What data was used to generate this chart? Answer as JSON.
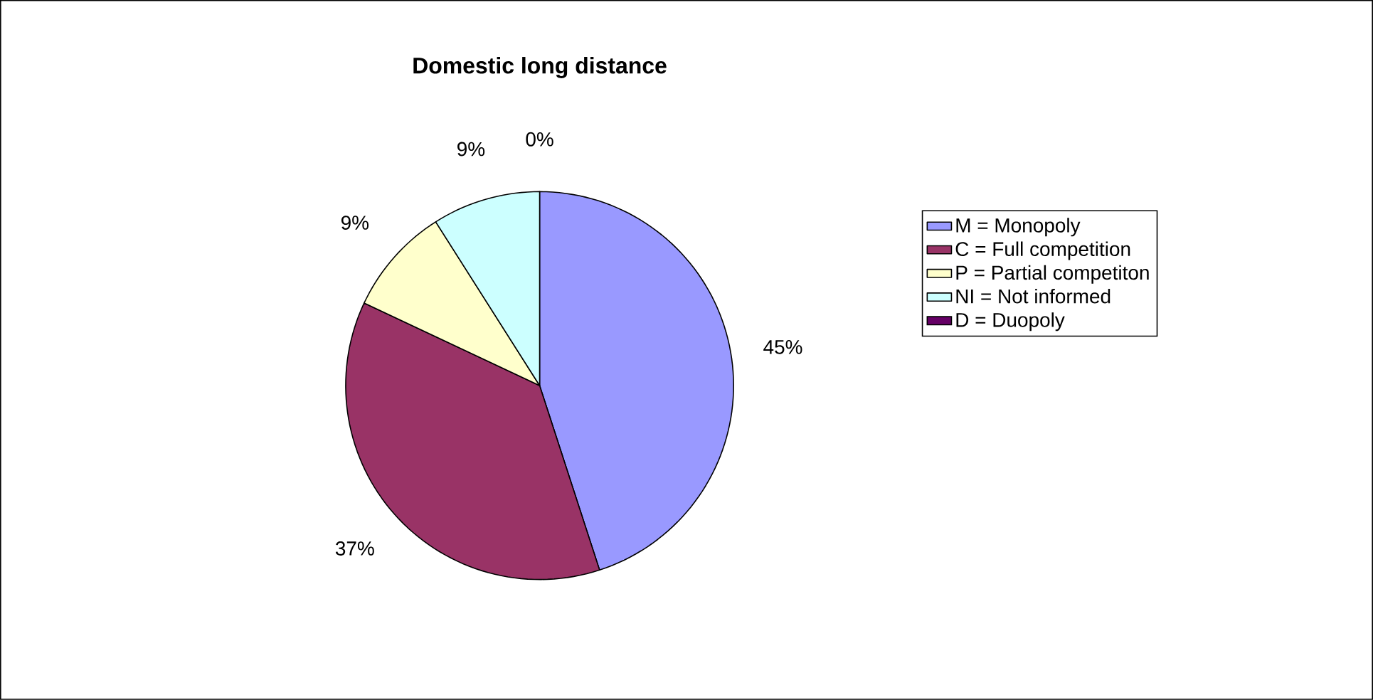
{
  "chart_data": {
    "type": "pie",
    "title": "Domestic long distance",
    "categories": [
      "M = Monopoly",
      "C = Full competition",
      "P = Partial competiton",
      "NI = Not informed",
      "D = Duopoly"
    ],
    "values": [
      45,
      37,
      9,
      9,
      0
    ],
    "colors": [
      "#9999ff",
      "#993366",
      "#ffffcc",
      "#ccffff",
      "#660066"
    ],
    "value_labels": [
      "45%",
      "37%",
      "9%",
      "9%",
      "0%"
    ],
    "legend": "right"
  }
}
